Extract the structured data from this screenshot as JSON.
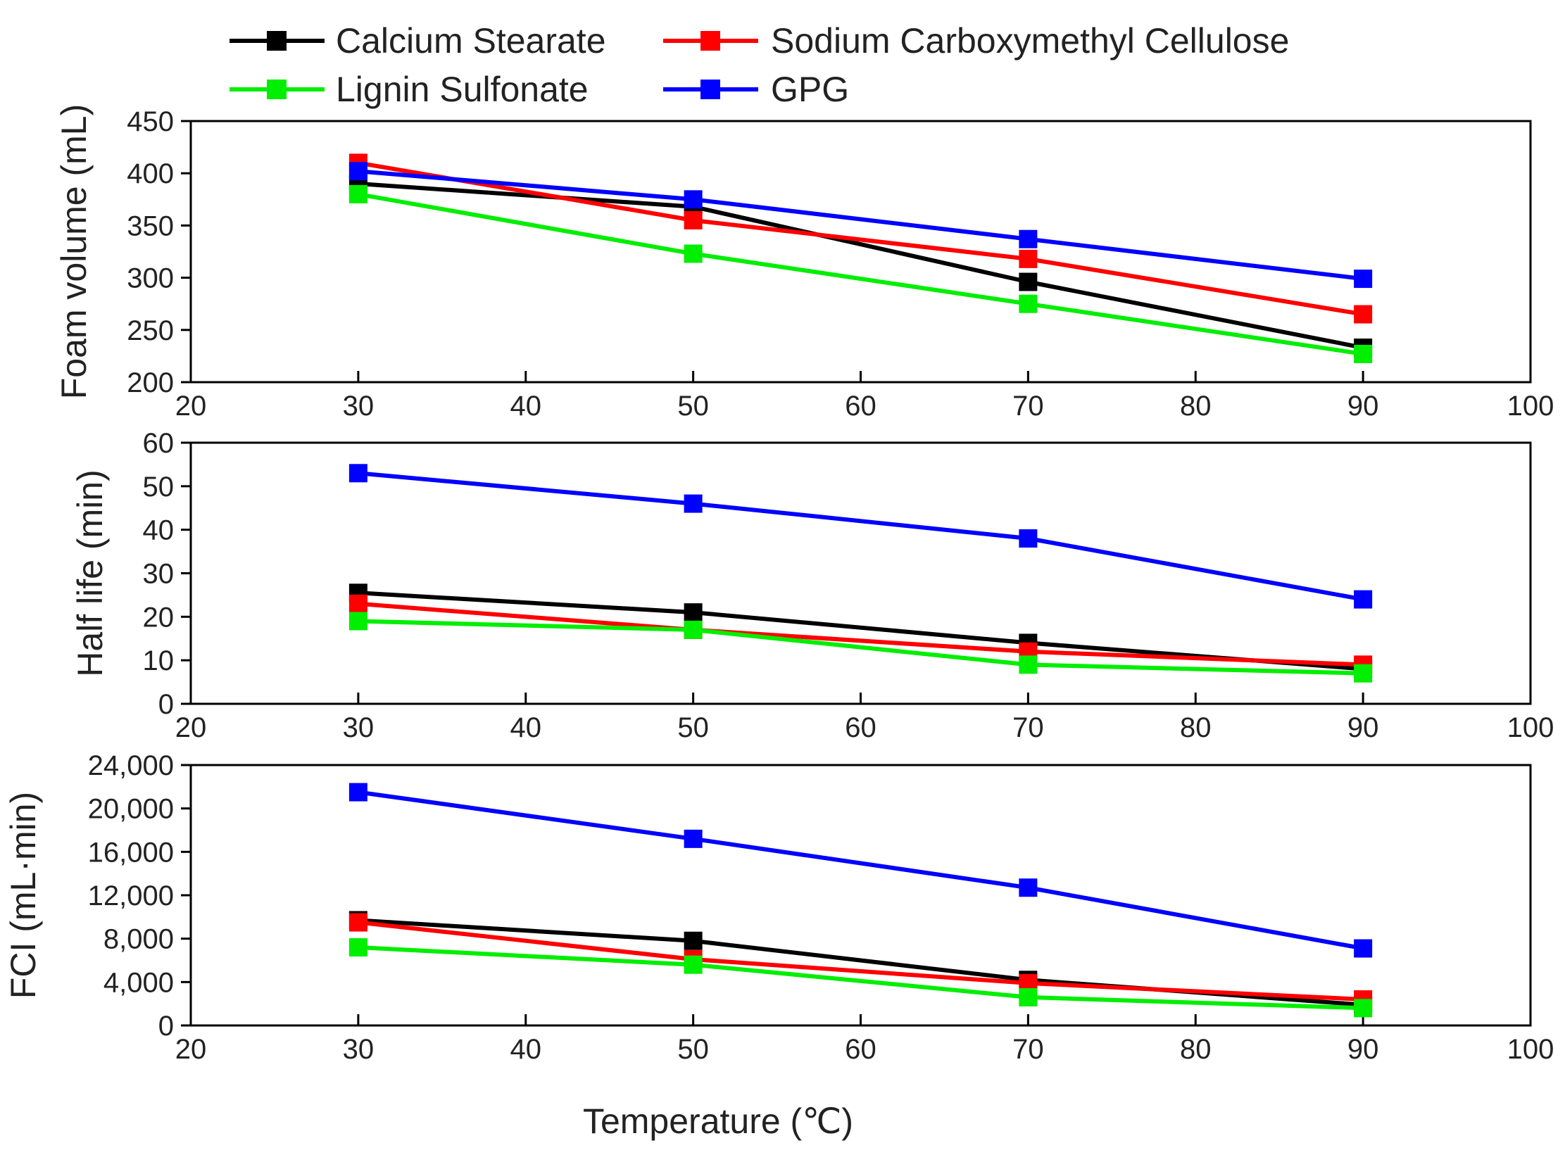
{
  "chart_data": {
    "type": "line",
    "xlabel": "Temperature (℃)",
    "xlim": [
      20,
      100
    ],
    "xticks": [
      20,
      30,
      40,
      50,
      60,
      70,
      80,
      90,
      100
    ],
    "x": [
      30,
      50,
      70,
      90
    ],
    "legend": {
      "position": "top",
      "entries": [
        "Calcium Stearate",
        "Sodium Carboxymethyl Cellulose",
        "Lignin Sulfonate",
        "GPG"
      ]
    },
    "series_colors": {
      "Calcium Stearate": "#000000",
      "Sodium Carboxymethyl Cellulose": "#ff0000",
      "Lignin Sulfonate": "#00ee00",
      "GPG": "#0000ff"
    },
    "panels": [
      {
        "id": "foam",
        "ylabel": "Foam volume (mL)",
        "ylim": [
          200,
          450
        ],
        "yticks": [
          200,
          250,
          300,
          350,
          400,
          450
        ],
        "ytick_labels": [
          "200",
          "250",
          "300",
          "350",
          "400",
          "450"
        ],
        "series": [
          {
            "name": "Calcium Stearate",
            "values": [
              390,
              368,
              296,
              233
            ]
          },
          {
            "name": "Sodium Carboxymethyl Cellulose",
            "values": [
              410,
              355,
              318,
              265
            ]
          },
          {
            "name": "Lignin Sulfonate",
            "values": [
              380,
              323,
              275,
              227
            ]
          },
          {
            "name": "GPG",
            "values": [
              402,
              375,
              337,
              299
            ]
          }
        ]
      },
      {
        "id": "halflife",
        "ylabel": "Half life (min)",
        "ylim": [
          0,
          60
        ],
        "yticks": [
          0,
          10,
          20,
          30,
          40,
          50,
          60
        ],
        "ytick_labels": [
          "0",
          "10",
          "20",
          "30",
          "40",
          "50",
          "60"
        ],
        "series": [
          {
            "name": "Calcium Stearate",
            "values": [
              25.5,
              21,
              14,
              8
            ]
          },
          {
            "name": "Sodium Carboxymethyl Cellulose",
            "values": [
              23,
              17,
              12,
              9
            ]
          },
          {
            "name": "Lignin Sulfonate",
            "values": [
              19,
              17,
              9,
              7
            ]
          },
          {
            "name": "GPG",
            "values": [
              53,
              46,
              38,
              24
            ]
          }
        ]
      },
      {
        "id": "fci",
        "ylabel": "FCI (mL·min)",
        "ylim": [
          0,
          24000
        ],
        "yticks": [
          0,
          4000,
          8000,
          12000,
          16000,
          20000,
          24000
        ],
        "ytick_labels": [
          "0",
          "4,000",
          "8,000",
          "12,000",
          "16,000",
          "20,000",
          "24,000"
        ],
        "series": [
          {
            "name": "Calcium Stearate",
            "values": [
              9700,
              7800,
              4200,
              1900
            ]
          },
          {
            "name": "Sodium Carboxymethyl Cellulose",
            "values": [
              9500,
              6100,
              3900,
              2400
            ]
          },
          {
            "name": "Lignin Sulfonate",
            "values": [
              7200,
              5600,
              2600,
              1600
            ]
          },
          {
            "name": "GPG",
            "values": [
              21500,
              17200,
              12700,
              7100
            ]
          }
        ]
      }
    ]
  }
}
